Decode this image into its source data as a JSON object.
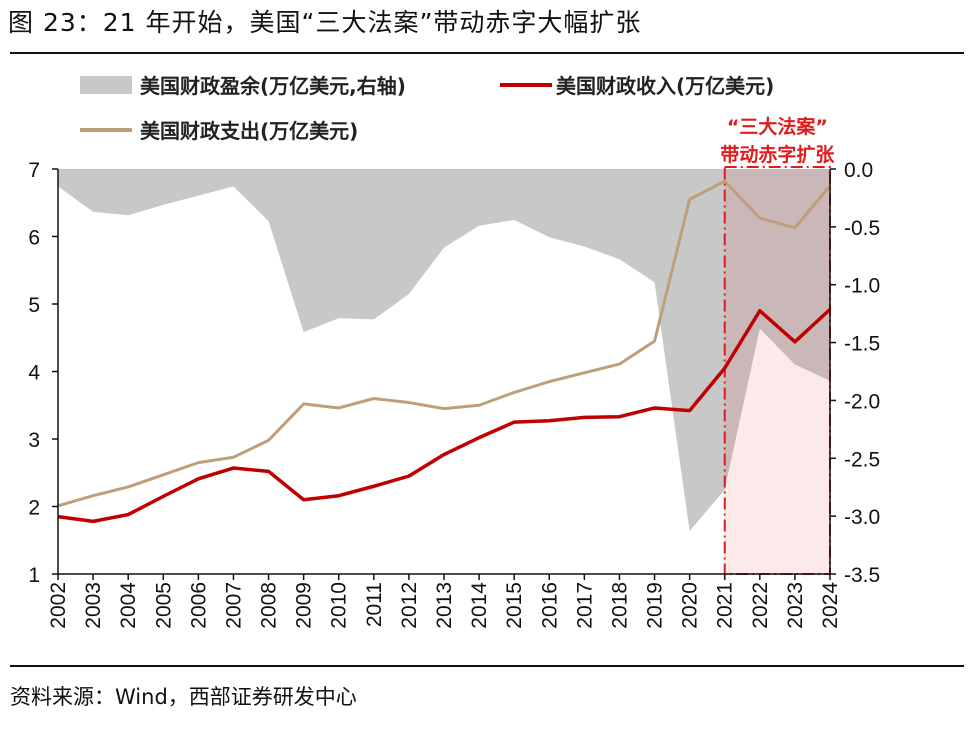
{
  "figure": {
    "title": "图 23：21 年开始，美国“三大法案”带动赤字大幅扩张",
    "source": "资料来源：Wind，西部证券研发中心"
  },
  "chart_data": {
    "type": "line+area",
    "x": [
      "2002",
      "2003",
      "2004",
      "2005",
      "2006",
      "2007",
      "2008",
      "2009",
      "2010",
      "2011",
      "2012",
      "2013",
      "2014",
      "2015",
      "2016",
      "2017",
      "2018",
      "2019",
      "2020",
      "2021",
      "2022",
      "2023",
      "2024"
    ],
    "series": [
      {
        "name": "美国财政盈余(万亿美元,右轴)",
        "kind": "area",
        "axis": "right",
        "color": "#c8c8c8",
        "values": [
          -0.15,
          -0.37,
          -0.4,
          -0.31,
          -0.23,
          -0.15,
          -0.45,
          -1.41,
          -1.29,
          -1.3,
          -1.08,
          -0.68,
          -0.49,
          -0.44,
          -0.59,
          -0.67,
          -0.78,
          -0.98,
          -3.13,
          -2.77,
          -1.38,
          -1.69,
          -1.83
        ]
      },
      {
        "name": "美国财政收入(万亿美元)",
        "kind": "line",
        "axis": "left",
        "color": "#c00000",
        "values": [
          1.85,
          1.78,
          1.88,
          2.15,
          2.41,
          2.57,
          2.52,
          2.1,
          2.16,
          2.3,
          2.45,
          2.77,
          3.02,
          3.25,
          3.27,
          3.32,
          3.33,
          3.46,
          3.42,
          4.05,
          4.9,
          4.44,
          4.92
        ]
      },
      {
        "name": "美国财政支出(万亿美元)",
        "kind": "line",
        "axis": "left",
        "color": "#bf9f7a",
        "values": [
          2.01,
          2.16,
          2.29,
          2.47,
          2.65,
          2.73,
          2.98,
          3.52,
          3.46,
          3.6,
          3.54,
          3.45,
          3.5,
          3.69,
          3.85,
          3.98,
          4.11,
          4.45,
          6.55,
          6.82,
          6.27,
          6.13,
          6.75
        ]
      }
    ],
    "yleft": {
      "min": 1,
      "max": 7,
      "ticks": [
        1,
        2,
        3,
        4,
        5,
        6,
        7
      ]
    },
    "yright": {
      "min": -3.5,
      "max": 0.0,
      "ticks": [
        0.0,
        -0.5,
        -1.0,
        -1.5,
        -2.0,
        -2.5,
        -3.0,
        -3.5
      ],
      "tick_labels": [
        "0.0",
        "-0.5",
        "-1.0",
        "-1.5",
        "-2.0",
        "-2.5",
        "-3.0",
        "-3.5"
      ]
    },
    "highlight": {
      "from": "2021",
      "to": "2024",
      "label_line1": "“三大法案”",
      "label_line2": "带动赤字扩张",
      "color": "#e01b1b"
    },
    "legend_position": "top",
    "grid": false
  }
}
